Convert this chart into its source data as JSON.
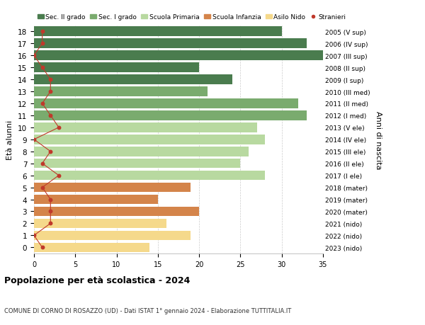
{
  "ages": [
    18,
    17,
    16,
    15,
    14,
    13,
    12,
    11,
    10,
    9,
    8,
    7,
    6,
    5,
    4,
    3,
    2,
    1,
    0
  ],
  "right_labels": [
    "2005 (V sup)",
    "2006 (IV sup)",
    "2007 (III sup)",
    "2008 (II sup)",
    "2009 (I sup)",
    "2010 (III med)",
    "2011 (II med)",
    "2012 (I med)",
    "2013 (V ele)",
    "2014 (IV ele)",
    "2015 (III ele)",
    "2016 (II ele)",
    "2017 (I ele)",
    "2018 (mater)",
    "2019 (mater)",
    "2020 (mater)",
    "2021 (nido)",
    "2022 (nido)",
    "2023 (nido)"
  ],
  "bar_values": [
    30,
    33,
    35,
    20,
    24,
    21,
    32,
    33,
    27,
    28,
    26,
    25,
    28,
    19,
    15,
    20,
    16,
    19,
    14
  ],
  "bar_colors": [
    "#4a7c4e",
    "#4a7c4e",
    "#4a7c4e",
    "#4a7c4e",
    "#4a7c4e",
    "#7aab6e",
    "#7aab6e",
    "#7aab6e",
    "#b8d9a0",
    "#b8d9a0",
    "#b8d9a0",
    "#b8d9a0",
    "#b8d9a0",
    "#d4844a",
    "#d4844a",
    "#d4844a",
    "#f5d98b",
    "#f5d98b",
    "#f5d98b"
  ],
  "stranieri_values": [
    1,
    1,
    0,
    1,
    2,
    2,
    1,
    2,
    3,
    0,
    2,
    1,
    3,
    1,
    2,
    2,
    2,
    0,
    1
  ],
  "legend_labels": [
    "Sec. II grado",
    "Sec. I grado",
    "Scuola Primaria",
    "Scuola Infanzia",
    "Asilo Nido",
    "Stranieri"
  ],
  "legend_colors": [
    "#4a7c4e",
    "#7aab6e",
    "#b8d9a0",
    "#d4844a",
    "#f5d98b",
    "#c0392b"
  ],
  "ylabel_left": "Età alunni",
  "ylabel_right": "Anni di nascita",
  "title": "Popolazione per età scolastica - 2024",
  "subtitle": "COMUNE DI CORNO DI ROSAZZO (UD) - Dati ISTAT 1° gennaio 2024 - Elaborazione TUTTITALIA.IT",
  "xlim": [
    0,
    35
  ],
  "xticks": [
    0,
    5,
    10,
    15,
    20,
    25,
    30,
    35
  ],
  "bg_color": "#ffffff",
  "bar_height": 0.8,
  "stranieri_color": "#c0392b",
  "line_color": "#c0392b"
}
